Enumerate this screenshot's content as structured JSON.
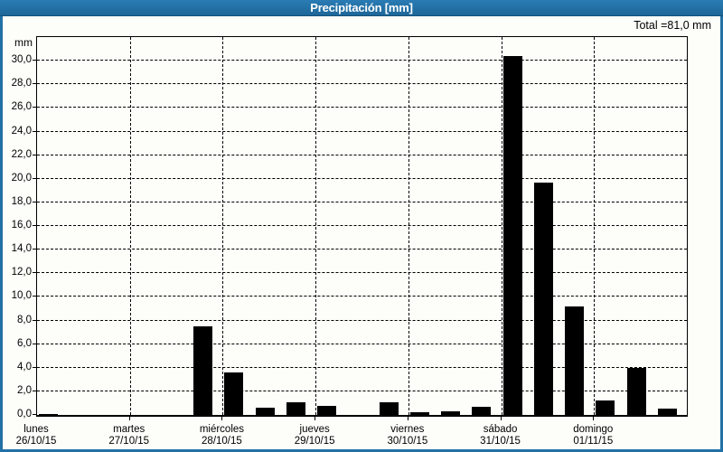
{
  "window": {
    "title": "Precipitación [mm]"
  },
  "summary": {
    "total_label": "Total =81,0 mm"
  },
  "chart_data": {
    "type": "bar",
    "title": "Precipitación [mm]",
    "unit_label": "mm",
    "ylabel": "mm",
    "ylim": [
      0,
      32
    ],
    "ytick_step": 2,
    "ytick_values": [
      0,
      2,
      4,
      6,
      8,
      10,
      12,
      14,
      16,
      18,
      20,
      22,
      24,
      26,
      28,
      30
    ],
    "ytick_labels": [
      "0,0",
      "2,0",
      "4,0",
      "6,0",
      "8,0",
      "10,0",
      "12,0",
      "14,0",
      "16,0",
      "18,0",
      "20,0",
      "22,0",
      "24,0",
      "26,0",
      "28,0",
      "30,0"
    ],
    "grid": true,
    "bar_color": "#000000",
    "bars_per_day": 3,
    "total_mm": "81,0",
    "days": [
      {
        "name": "lunes",
        "date": "26/10/15",
        "values": [
          0.1,
          0,
          0
        ]
      },
      {
        "name": "martes",
        "date": "27/10/15",
        "values": [
          0,
          0,
          7.5
        ]
      },
      {
        "name": "miércoles",
        "date": "28/10/15",
        "values": [
          3.6,
          0.6,
          1.1
        ]
      },
      {
        "name": "jueves",
        "date": "29/10/15",
        "values": [
          0.8,
          0,
          1.1
        ]
      },
      {
        "name": "viernes",
        "date": "30/10/15",
        "values": [
          0.2,
          0.3,
          0.7
        ]
      },
      {
        "name": "sábado",
        "date": "31/10/15",
        "values": [
          30.4,
          19.7,
          9.2
        ]
      },
      {
        "name": "domingo",
        "date": "01/11/15",
        "values": [
          1.2,
          4.0,
          0.5
        ]
      }
    ]
  },
  "colors": {
    "titlebar": "#2171a6",
    "border": "#2171a6",
    "background": "#fdfdfa",
    "bar": "#000000",
    "grid": "#000000",
    "title_text": "#ffffff"
  }
}
